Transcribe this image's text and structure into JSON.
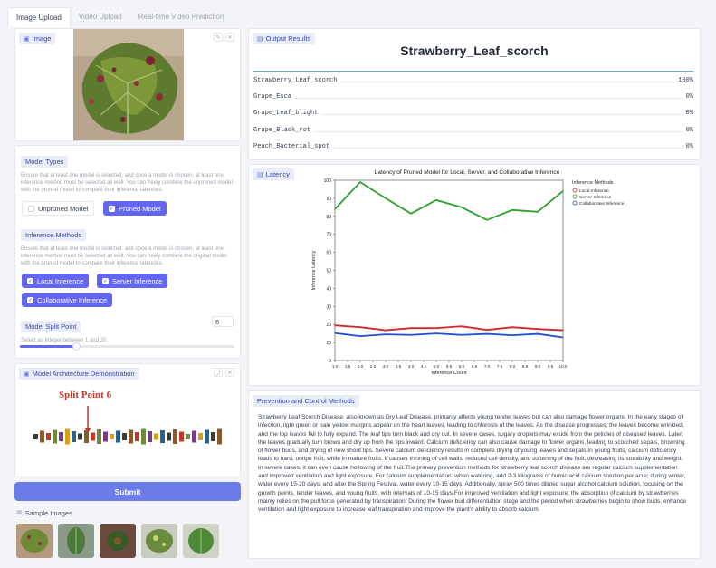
{
  "tabs": [
    "Image Upload",
    "Video Upload",
    "Real-time Video Prediction"
  ],
  "image_panel": {
    "label": "Image"
  },
  "output": {
    "label": "Output Results",
    "title": "Strawberry_Leaf_scorch",
    "rows": [
      {
        "name": "Strawberry_Leaf_scorch",
        "value": "100%"
      },
      {
        "name": "Grape_Esca",
        "value": "0%"
      },
      {
        "name": "Grape_Leaf_blight",
        "value": "0%"
      },
      {
        "name": "Grape_Black_rot",
        "value": "0%"
      },
      {
        "name": "Peach_Bacterial_spot",
        "value": "0%"
      }
    ]
  },
  "model_types": {
    "label": "Model Types",
    "help": "Ensure that at least one model is selected, and once a model is chosen, at least one inference method must be selected as well. You can freely combine the unpruned model with the pruned model to compare their inference latencies.",
    "options": [
      {
        "label": "Unpruned Model",
        "checked": false
      },
      {
        "label": "Pruned Model",
        "checked": true
      }
    ]
  },
  "inference_methods": {
    "label": "Inference Methods",
    "help": "Ensure that at least one model is selected, and once a model is chosen, at least one inference method must be selected as well. You can freely combine the original model with the pruned model to compare their inference latencies.",
    "options": [
      {
        "label": "Local Inference",
        "checked": true
      },
      {
        "label": "Server Inference",
        "checked": true
      },
      {
        "label": "Collaborative Inference",
        "checked": true
      }
    ]
  },
  "split_point": {
    "label": "Model Split Point",
    "value": "6",
    "help": "Select an integer between 1 and 20.",
    "fraction": 0.26
  },
  "architecture": {
    "label": "Model Architecture Demonstration",
    "split_text": "Split Point 6"
  },
  "submit_label": "Submit",
  "samples": {
    "label": "Sample Images"
  },
  "latency": {
    "label": "Latency"
  },
  "prevention": {
    "label": "Prevention and Control Methods",
    "text": "Strawberry Leaf Scorch Disease, also known as Dry Leaf Disease, primarily affects young tender leaves but can also damage flower organs. In the early stages of infection, light green or pale yellow margins appear on the heart leaves, leading to chlorosis of the leaves. As the disease progresses, the leaves become wrinkled, and the top leaves fail to fully expand. The leaf tips turn black and dry out. In severe cases, sugary droplets may exude from the petioles of diseased leaves. Later, the leaves gradually turn brown and dry up from the tips inward. Calcium deficiency can also cause damage to flower organs, leading to scorched sepals, browning of flower buds, and drying of new shoot tips. Severe calcium deficiency results in complete drying of young leaves and sepals.In young fruits, calcium deficiency leads to hard, unripe fruit, while in mature fruits, it causes thinning of cell walls, reduced cell density, and softening of the fruit, decreasing its storability and weight. In severe cases, it can even cause hollowing of the fruit.The primary prevention methods for strawberry leaf scorch disease are regular calcium supplementation and improved ventilation and light exposure. For calcium supplementation: when watering, add 2-3 kilograms of humic acid calcium solution per acre; during winter, water every 15-20 days, and after the Spring Festival, water every 10-15 days. Additionally, spray 500 times diluted sugar alcohol calcium solution, focusing on the growth points, tender leaves, and young fruits, with intervals of 10-15 days.For improved ventilation and light exposure: the absorption of calcium by strawberries mainly relies on the pull force generated by transpiration. During the flower bud differentiation stage and the period when strawberries begin to show buds, enhance ventilation and light exposure to increase leaf transpiration and improve the plant's ability to absorb calcium."
  },
  "chart_data": {
    "type": "line",
    "title": "Latency of Pruned Model for Local, Server, and Collaborative Inference",
    "xlabel": "Inference Count",
    "ylabel": "Inference Latency",
    "x": [
      1.0,
      1.5,
      2.0,
      2.5,
      3.0,
      3.5,
      4.0,
      4.5,
      5.0,
      5.5,
      6.0,
      6.5,
      7.0,
      7.5,
      8.0,
      8.5,
      9.0,
      9.5,
      10.0
    ],
    "x_tick_labels": [
      "1.0",
      "1.5",
      "2.0",
      "2.5",
      "3.0",
      "3.5",
      "4.0",
      "4.5",
      "5.0",
      "5.5",
      "6.0",
      "6.5",
      "7.0",
      "7.5",
      "8.0",
      "8.5",
      "9.0",
      "9.5",
      "10.0"
    ],
    "xlim": [
      1,
      10
    ],
    "ylim": [
      0,
      100
    ],
    "y_ticks": [
      0,
      10,
      20,
      30,
      40,
      50,
      60,
      70,
      80,
      90,
      100
    ],
    "legend_title": "Inference Methods",
    "legend_position": "right",
    "grid": false,
    "series": [
      {
        "name": "Local Inference",
        "color": "#d62728",
        "x": [
          1,
          2,
          3,
          4,
          5,
          6,
          7,
          8,
          9,
          10
        ],
        "values": [
          19.5,
          18.5,
          16.8,
          18.0,
          18.0,
          19.0,
          17.0,
          18.5,
          17.5,
          16.8
        ]
      },
      {
        "name": "Server Inference",
        "color": "#2ca02c",
        "x": [
          1,
          2,
          3,
          4,
          5,
          6,
          7,
          8,
          9,
          10
        ],
        "values": [
          84,
          99,
          90,
          81.5,
          89,
          85,
          78,
          83.5,
          82.5,
          94
        ]
      },
      {
        "name": "Collaborative Inference",
        "color": "#1f4fd1",
        "x": [
          1,
          2,
          3,
          4,
          5,
          6,
          7,
          8,
          9,
          10
        ],
        "values": [
          15.2,
          13.5,
          14.5,
          14.2,
          15.0,
          14.2,
          14.8,
          14.0,
          14.8,
          12.8
        ]
      }
    ]
  }
}
